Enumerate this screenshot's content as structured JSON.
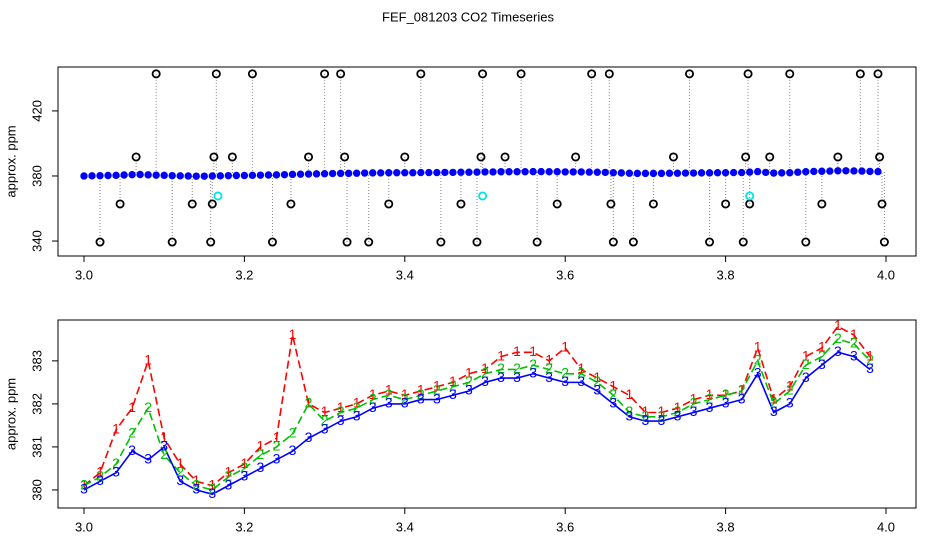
{
  "chart_data": [
    {
      "type": "scatter",
      "title": "FEF_081203  CO2 Timeseries",
      "ylabel": "approx. ppm",
      "xlim": [
        2.9676,
        4.0374
      ],
      "ylim": [
        330.8,
        447
      ],
      "xticks": [
        {
          "value": 3,
          "label": "3.0"
        },
        {
          "value": 3.2,
          "label": "3.2"
        },
        {
          "value": 3.4,
          "label": "3.4"
        },
        {
          "value": 3.6,
          "label": "3.6"
        },
        {
          "value": 3.8,
          "label": "3.8"
        },
        {
          "value": 4,
          "label": "4.0"
        }
      ],
      "yticks": [
        340,
        380,
        420
      ],
      "series": [
        {
          "color": "#0000ff",
          "marker": "circle",
          "x": [
            3.0,
            3.01,
            3.02,
            3.03,
            3.04,
            3.05,
            3.06,
            3.07,
            3.08,
            3.09,
            3.1,
            3.11,
            3.12,
            3.13,
            3.14,
            3.15,
            3.16,
            3.17,
            3.18,
            3.19,
            3.2,
            3.21,
            3.22,
            3.23,
            3.24,
            3.25,
            3.26,
            3.27,
            3.28,
            3.29,
            3.3,
            3.31,
            3.32,
            3.33,
            3.34,
            3.35,
            3.36,
            3.37,
            3.38,
            3.39,
            3.4,
            3.41,
            3.42,
            3.43,
            3.44,
            3.45,
            3.46,
            3.47,
            3.48,
            3.49,
            3.5,
            3.51,
            3.52,
            3.53,
            3.54,
            3.55,
            3.56,
            3.57,
            3.58,
            3.59,
            3.6,
            3.61,
            3.62,
            3.63,
            3.64,
            3.65,
            3.66,
            3.67,
            3.68,
            3.69,
            3.7,
            3.71,
            3.72,
            3.73,
            3.74,
            3.75,
            3.76,
            3.77,
            3.78,
            3.79,
            3.8,
            3.81,
            3.82,
            3.83,
            3.84,
            3.85,
            3.86,
            3.87,
            3.88,
            3.89,
            3.9,
            3.91,
            3.92,
            3.93,
            3.94,
            3.95,
            3.96,
            3.97,
            3.98,
            3.99
          ],
          "values": [
            380.0,
            380.1,
            380.2,
            380.3,
            380.4,
            380.6,
            380.8,
            380.9,
            380.7,
            380.5,
            380.4,
            380.2,
            380.1,
            380.0,
            379.9,
            379.9,
            380.0,
            380.1,
            380.2,
            380.3,
            380.3,
            380.4,
            380.5,
            380.6,
            380.7,
            380.8,
            381.0,
            381.1,
            381.2,
            381.3,
            381.4,
            381.5,
            381.6,
            381.6,
            381.7,
            381.8,
            381.9,
            381.9,
            382.0,
            382.0,
            382.0,
            382.0,
            382.1,
            382.1,
            382.1,
            382.2,
            382.2,
            382.3,
            382.3,
            382.4,
            382.5,
            382.5,
            382.6,
            382.6,
            382.6,
            382.6,
            382.7,
            382.7,
            382.6,
            382.6,
            382.5,
            382.5,
            382.5,
            382.4,
            382.3,
            382.2,
            382.0,
            381.9,
            381.7,
            381.6,
            381.6,
            381.6,
            381.6,
            381.7,
            381.7,
            381.8,
            381.8,
            381.9,
            381.9,
            382.0,
            382.0,
            382.1,
            382.1,
            382.4,
            382.7,
            382.2,
            381.8,
            381.9,
            382.0,
            382.3,
            382.6,
            382.8,
            382.9,
            383.0,
            383.2,
            383.2,
            383.1,
            383.0,
            382.8,
            382.7
          ]
        },
        {
          "color": "#000000",
          "marker": "circle",
          "line": "dotted",
          "x": [
            3.02,
            3.045,
            3.065,
            3.09,
            3.11,
            3.135,
            3.158,
            3.16,
            3.162,
            3.165,
            3.185,
            3.21,
            3.235,
            3.258,
            3.28,
            3.3,
            3.32,
            3.325,
            3.328,
            3.355,
            3.38,
            3.4,
            3.42,
            3.445,
            3.47,
            3.49,
            3.495,
            3.497,
            3.525,
            3.545,
            3.565,
            3.59,
            3.613,
            3.633,
            3.655,
            3.657,
            3.66,
            3.685,
            3.71,
            3.735,
            3.755,
            3.78,
            3.8,
            3.822,
            3.825,
            3.828,
            3.83,
            3.855,
            3.88,
            3.9,
            3.92,
            3.94,
            3.968,
            3.99,
            3.992,
            3.995,
            3.998
          ],
          "values": [
            339.4,
            362.8,
            391.7,
            442.8,
            339.4,
            362.8,
            339.4,
            362.8,
            391.7,
            442.8,
            391.7,
            442.8,
            339.4,
            362.8,
            391.7,
            442.8,
            442.8,
            391.7,
            339.4,
            339.4,
            362.8,
            391.7,
            442.8,
            339.4,
            362.8,
            339.4,
            391.7,
            442.8,
            391.7,
            442.8,
            339.4,
            362.8,
            391.7,
            442.8,
            442.8,
            362.8,
            339.4,
            339.4,
            362.8,
            391.7,
            442.8,
            339.4,
            362.8,
            339.4,
            391.7,
            442.8,
            362.8,
            391.7,
            442.8,
            339.4,
            362.8,
            391.7,
            442.8,
            442.8,
            391.7,
            362.8,
            339.4
          ]
        },
        {
          "color": "#00e5e5",
          "marker": "circle",
          "x": [
            3.167,
            3.497,
            3.83
          ],
          "values": [
            367.7,
            367.7,
            367.7
          ]
        }
      ]
    },
    {
      "type": "line",
      "ylabel": "approx. ppm",
      "xlim": [
        2.9676,
        4.0374
      ],
      "ylim": [
        379.58,
        383.95
      ],
      "xticks": [
        {
          "value": 3,
          "label": "3.0"
        },
        {
          "value": 3.2,
          "label": "3.2"
        },
        {
          "value": 3.4,
          "label": "3.4"
        },
        {
          "value": 3.6,
          "label": "3.6"
        },
        {
          "value": 3.8,
          "label": "3.8"
        },
        {
          "value": 4,
          "label": "4.0"
        }
      ],
      "yticks": [
        380,
        381,
        382,
        383
      ],
      "x": [
        3.0,
        3.02,
        3.04,
        3.06,
        3.08,
        3.1,
        3.12,
        3.14,
        3.16,
        3.18,
        3.2,
        3.22,
        3.24,
        3.26,
        3.28,
        3.3,
        3.32,
        3.34,
        3.36,
        3.38,
        3.4,
        3.42,
        3.44,
        3.46,
        3.48,
        3.5,
        3.52,
        3.54,
        3.56,
        3.58,
        3.6,
        3.62,
        3.64,
        3.66,
        3.68,
        3.7,
        3.72,
        3.74,
        3.76,
        3.78,
        3.8,
        3.82,
        3.84,
        3.86,
        3.88,
        3.9,
        3.92,
        3.94,
        3.96,
        3.98
      ],
      "series": [
        {
          "color": "#ff0000",
          "marker": "1",
          "line": "dashed",
          "values": [
            380.1,
            380.4,
            381.4,
            381.9,
            383.0,
            381.2,
            380.6,
            380.2,
            380.1,
            380.4,
            380.6,
            381.0,
            381.2,
            383.6,
            382.0,
            381.8,
            381.9,
            382.0,
            382.2,
            382.3,
            382.2,
            382.3,
            382.4,
            382.5,
            382.7,
            382.8,
            383.1,
            383.2,
            383.2,
            383.0,
            383.3,
            382.8,
            382.6,
            382.4,
            382.2,
            381.8,
            381.8,
            381.9,
            382.1,
            382.2,
            382.2,
            382.3,
            383.3,
            382.1,
            382.4,
            383.1,
            383.3,
            383.8,
            383.6,
            383.1
          ]
        },
        {
          "color": "#00c000",
          "marker": "2",
          "line": "dashed",
          "values": [
            380.1,
            380.3,
            380.6,
            381.3,
            381.9,
            380.8,
            380.4,
            380.1,
            380.0,
            380.3,
            380.5,
            380.8,
            381.0,
            381.3,
            382.0,
            381.6,
            381.8,
            381.9,
            382.1,
            382.2,
            382.1,
            382.2,
            382.3,
            382.4,
            382.5,
            382.7,
            382.8,
            382.8,
            382.9,
            382.8,
            382.7,
            382.7,
            382.5,
            382.2,
            381.8,
            381.7,
            381.7,
            381.8,
            382.0,
            382.1,
            382.2,
            382.3,
            383.0,
            382.0,
            382.3,
            382.9,
            383.1,
            383.5,
            383.4,
            383.0
          ]
        },
        {
          "color": "#0000ff",
          "marker": "3",
          "line": "solid",
          "values": [
            380.0,
            380.2,
            380.4,
            380.9,
            380.7,
            381.0,
            380.2,
            380.0,
            379.9,
            380.1,
            380.3,
            380.5,
            380.7,
            380.9,
            381.2,
            381.4,
            381.6,
            381.7,
            381.9,
            382.0,
            382.0,
            382.1,
            382.1,
            382.2,
            382.3,
            382.5,
            382.6,
            382.6,
            382.7,
            382.6,
            382.5,
            382.5,
            382.3,
            382.0,
            381.7,
            381.6,
            381.6,
            381.7,
            381.8,
            381.9,
            382.0,
            382.1,
            382.7,
            381.8,
            382.0,
            382.6,
            382.9,
            383.2,
            383.1,
            382.8
          ]
        }
      ]
    }
  ]
}
